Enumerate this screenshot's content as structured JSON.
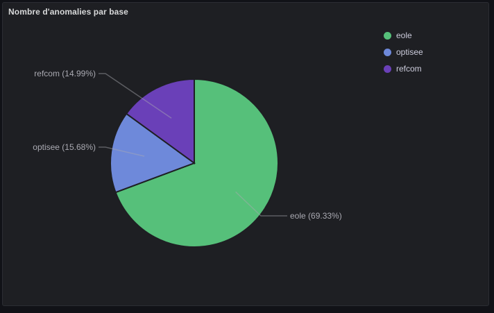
{
  "panel": {
    "title": "Nombre d'anomalies par base"
  },
  "chart_data": {
    "type": "pie",
    "title": "Nombre d'anomalies par base",
    "legend_position": "top-right",
    "slices": [
      {
        "name": "eole",
        "percent": 69.33,
        "label": "eole (69.33%)",
        "color": "#56c07a"
      },
      {
        "name": "optisee",
        "percent": 15.68,
        "label": "optisee (15.68%)",
        "color": "#6e89da"
      },
      {
        "name": "refcom",
        "percent": 14.99,
        "label": "refcom (14.99%)",
        "color": "#6a40b8"
      }
    ]
  },
  "legend": {
    "items": [
      {
        "label": "eole",
        "color": "#56c07a"
      },
      {
        "label": "optisee",
        "color": "#6e89da"
      },
      {
        "label": "refcom",
        "color": "#6a40b8"
      }
    ]
  }
}
